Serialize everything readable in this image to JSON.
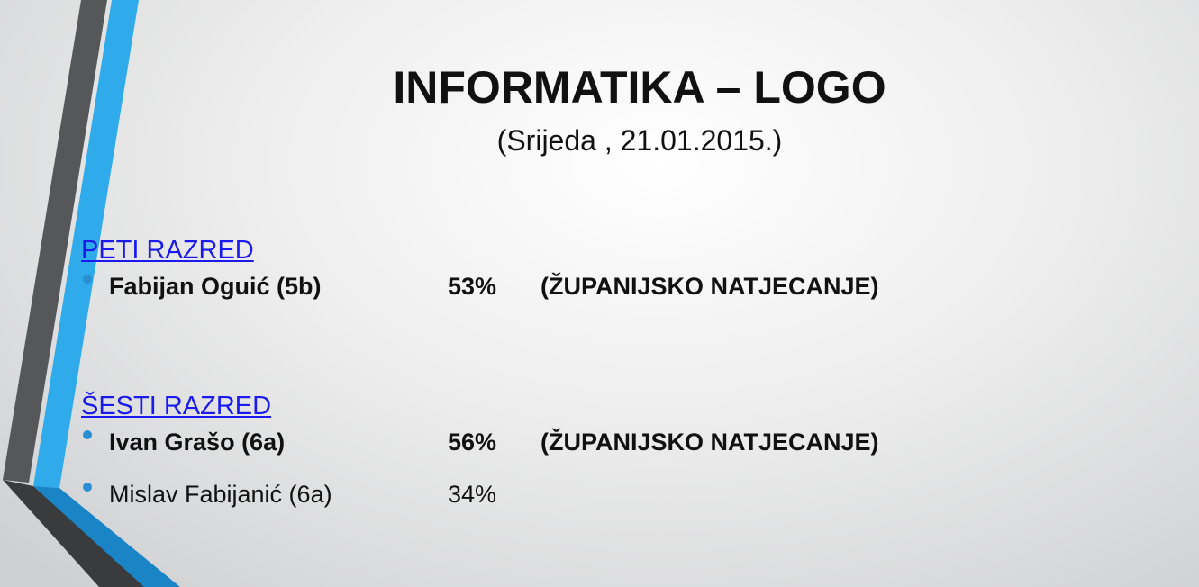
{
  "header": {
    "title": "INFORMATIKA – LOGO",
    "subtitle": "(Srijeda , 21.01.2015.)"
  },
  "sections": [
    {
      "heading": "PETI RAZRED",
      "items": [
        {
          "name": "Fabijan Oguić (5b)",
          "score": "53%",
          "note": "(ŽUPANIJSKO NATJECANJE)",
          "bold": true
        }
      ]
    },
    {
      "heading": "ŠESTI RAZRED",
      "items": [
        {
          "name": "Ivan Grašo (6a)",
          "score": "56%",
          "note": "(ŽUPANIJSKO NATJECANJE)",
          "bold": true
        },
        {
          "name": "Mislav Fabijanić (6a)",
          "score": "34%",
          "bold": false
        }
      ]
    }
  ]
}
